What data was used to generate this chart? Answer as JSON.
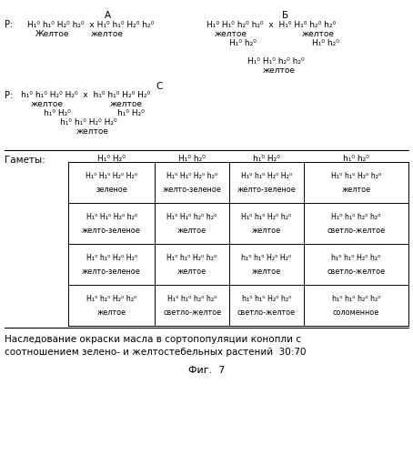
{
  "title_A": "А",
  "title_B": "Б",
  "title_C": "С",
  "fig_caption": "Фиг.  7",
  "bottom_text_line1": "Наследование окраски масла в сортопопуляции конопли с",
  "bottom_text_line2": "соотношением зелено- и желтостебельных растений  30:70",
  "gametes_label": "Гаметы:",
  "col_headers": [
    "H₁⁰ H₂⁰",
    "H₁⁰ h₂⁰",
    "h₁⁰ H₂⁰",
    "h₁⁰ h₂⁰"
  ],
  "table_cells": [
    [
      {
        "formula": "H₁⁰ H₁⁰ H₂⁰ H₂⁰",
        "color_name": "зеленое"
      },
      {
        "formula": "H₁⁰ H₁⁰ H₂⁰ h₂⁰",
        "color_name": "желто-зеленое"
      },
      {
        "formula": "H₁⁰ h₁⁰ H₂⁰ H₂⁰",
        "color_name": "желто-зеленое"
      },
      {
        "formula": "H₁⁰ h₁⁰ H₂⁰ h₂⁰",
        "color_name": "желтое"
      }
    ],
    [
      {
        "formula": "H₁⁰ H₁⁰ H₂⁰ h₂⁰",
        "color_name": "желто-зеленое"
      },
      {
        "formula": "H₁⁰ H₁⁰ h₂⁰ h₂⁰",
        "color_name": "желтое"
      },
      {
        "formula": "H₁⁰ h₁⁰ H₂⁰ h₂⁰",
        "color_name": "желтое"
      },
      {
        "formula": "H₁⁰ h₁⁰ h₂⁰ h₂⁰",
        "color_name": "светло-желтое"
      }
    ],
    [
      {
        "formula": "H₁⁰ h₁⁰ H₂⁰ H₂⁰",
        "color_name": "желто-зеленое"
      },
      {
        "formula": "H₁⁰ h₁⁰ H₂⁰ h₂⁰",
        "color_name": "желтое"
      },
      {
        "formula": "h₁⁰ h₁⁰ H₂⁰ H₂⁰",
        "color_name": "желтое"
      },
      {
        "formula": "h₁⁰ h₁⁰ H₂⁰ h₂⁰",
        "color_name": "светло-желтое"
      }
    ],
    [
      {
        "formula": "H₁⁰ h₁⁰ H₂⁰ h₂⁰",
        "color_name": "желтое"
      },
      {
        "formula": "H₁⁰ h₁⁰ h₂⁰ h₂⁰",
        "color_name": "светло-желтое"
      },
      {
        "formula": "h₁⁰ h₁⁰ H₂⁰ h₂⁰",
        "color_name": "светло-желтое"
      },
      {
        "formula": "h₁⁰ h₁⁰ h₂⁰ h₂⁰",
        "color_name": "соломенное"
      }
    ]
  ]
}
